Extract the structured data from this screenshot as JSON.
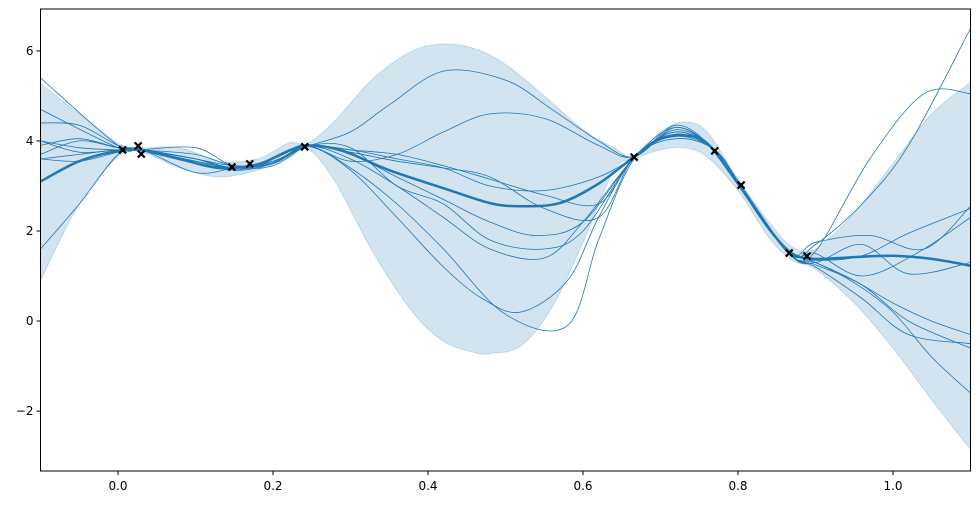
{
  "chart_data": {
    "type": "line",
    "title": "",
    "xlabel": "",
    "ylabel": "",
    "xlim": [
      -0.1,
      1.1
    ],
    "ylim": [
      -3.33,
      6.93
    ],
    "grid": false,
    "legend": null,
    "x_ticks": [
      "0.0",
      "0.2",
      "0.4",
      "0.6",
      "0.8",
      "1.0"
    ],
    "x_tick_values": [
      0.0,
      0.2,
      0.4,
      0.6,
      0.8,
      1.0
    ],
    "y_ticks": [
      "−2",
      "0",
      "2",
      "4",
      "6"
    ],
    "y_tick_values": [
      -2,
      0,
      2,
      4,
      6
    ],
    "colors": {
      "mean": "#1f77b4",
      "band": "#1f77b4",
      "band_opacity": 0.2,
      "points": "#000000"
    },
    "observations": {
      "marker": "x",
      "x": [
        0.006,
        0.026,
        0.03,
        0.147,
        0.17,
        0.241,
        0.666,
        0.77,
        0.804,
        0.866,
        0.889
      ],
      "y": [
        3.8,
        3.89,
        3.71,
        3.42,
        3.49,
        3.87,
        3.64,
        3.78,
        3.02,
        1.51,
        1.44
      ]
    },
    "mean": {
      "x": [
        -0.1,
        -0.05,
        0.0,
        0.03,
        0.08,
        0.13,
        0.18,
        0.22,
        0.245,
        0.29,
        0.35,
        0.42,
        0.48,
        0.52,
        0.57,
        0.62,
        0.666,
        0.7,
        0.73,
        0.76,
        0.8,
        0.84,
        0.87,
        0.9,
        0.95,
        1.0,
        1.05,
        1.1
      ],
      "y": [
        3.1,
        3.55,
        3.78,
        3.8,
        3.6,
        3.4,
        3.48,
        3.78,
        3.9,
        3.78,
        3.35,
        2.95,
        2.62,
        2.55,
        2.62,
        3.05,
        3.65,
        4.05,
        4.12,
        3.95,
        3.05,
        2.05,
        1.5,
        1.38,
        1.42,
        1.45,
        1.38,
        1.23
      ]
    },
    "band_upper": {
      "x": [
        -0.1,
        -0.05,
        0.0,
        0.03,
        0.08,
        0.13,
        0.18,
        0.22,
        0.245,
        0.28,
        0.33,
        0.38,
        0.42,
        0.46,
        0.5,
        0.55,
        0.6,
        0.64,
        0.666,
        0.7,
        0.73,
        0.76,
        0.8,
        0.84,
        0.87,
        0.9,
        0.95,
        1.0,
        1.05,
        1.1
      ],
      "y": [
        5.27,
        4.6,
        3.95,
        3.85,
        3.85,
        3.55,
        3.6,
        3.95,
        3.95,
        4.45,
        5.4,
        6.0,
        6.15,
        6.05,
        5.7,
        5.0,
        4.25,
        3.85,
        3.65,
        4.2,
        4.42,
        4.2,
        3.15,
        2.2,
        1.65,
        1.6,
        2.4,
        3.5,
        4.6,
        5.3
      ]
    },
    "band_lower": {
      "x": [
        -0.1,
        -0.05,
        0.0,
        0.03,
        0.08,
        0.13,
        0.18,
        0.22,
        0.245,
        0.28,
        0.33,
        0.38,
        0.42,
        0.46,
        0.48,
        0.52,
        0.56,
        0.6,
        0.64,
        0.666,
        0.7,
        0.73,
        0.76,
        0.8,
        0.84,
        0.87,
        0.9,
        0.95,
        1.0,
        1.05,
        1.1
      ],
      "y": [
        0.9,
        2.6,
        3.65,
        3.75,
        3.4,
        3.2,
        3.35,
        3.62,
        3.82,
        3.1,
        1.5,
        0.2,
        -0.45,
        -0.7,
        -0.72,
        -0.55,
        0.3,
        1.75,
        3.35,
        3.6,
        3.8,
        3.85,
        3.65,
        2.9,
        1.85,
        1.35,
        1.15,
        0.4,
        -0.6,
        -1.75,
        -2.85
      ]
    },
    "samples": [
      {
        "x": [
          -0.1,
          0.0,
          0.03,
          0.1,
          0.15,
          0.2,
          0.245,
          0.3,
          0.36,
          0.42,
          0.48,
          0.55,
          0.62,
          0.666,
          0.72,
          0.77,
          0.804,
          0.866,
          0.9,
          0.96,
          1.02,
          1.1
        ],
        "y": [
          5.4,
          3.9,
          3.8,
          3.55,
          3.35,
          3.6,
          3.88,
          3.55,
          3.7,
          4.2,
          4.6,
          4.5,
          3.9,
          3.65,
          4.35,
          3.8,
          3.0,
          1.5,
          1.7,
          2.6,
          3.9,
          6.5
        ]
      },
      {
        "x": [
          -0.1,
          0.0,
          0.03,
          0.1,
          0.15,
          0.2,
          0.245,
          0.3,
          0.35,
          0.42,
          0.5,
          0.56,
          0.62,
          0.666,
          0.72,
          0.77,
          0.804,
          0.866,
          0.9,
          0.97,
          1.04,
          1.1
        ],
        "y": [
          4.7,
          3.85,
          3.8,
          3.6,
          3.4,
          3.55,
          3.88,
          4.2,
          4.8,
          5.55,
          5.35,
          4.7,
          4.0,
          3.65,
          4.3,
          3.78,
          3.0,
          1.5,
          1.55,
          3.6,
          5.05,
          5.05
        ]
      },
      {
        "x": [
          -0.1,
          -0.05,
          0.0,
          0.03,
          0.1,
          0.15,
          0.2,
          0.245,
          0.3,
          0.36,
          0.42,
          0.5,
          0.58,
          0.62,
          0.666,
          0.72,
          0.77,
          0.804,
          0.866,
          0.9,
          0.96,
          1.02,
          1.1
        ],
        "y": [
          1.6,
          2.6,
          3.7,
          3.8,
          3.3,
          3.4,
          3.5,
          3.88,
          3.4,
          2.6,
          1.6,
          0.15,
          -0.1,
          1.8,
          3.6,
          4.15,
          3.8,
          3.0,
          1.5,
          1.25,
          0.8,
          0.0,
          -0.6
        ]
      },
      {
        "x": [
          -0.1,
          -0.05,
          0.0,
          0.03,
          0.1,
          0.15,
          0.2,
          0.245,
          0.3,
          0.36,
          0.42,
          0.47,
          0.52,
          0.58,
          0.62,
          0.666,
          0.72,
          0.77,
          0.804,
          0.866,
          0.9,
          0.95,
          1.0,
          1.05,
          1.1
        ],
        "y": [
          3.6,
          3.7,
          3.8,
          3.78,
          3.5,
          3.42,
          3.52,
          3.88,
          3.35,
          2.3,
          1.2,
          0.5,
          0.2,
          0.9,
          2.3,
          3.62,
          4.2,
          3.8,
          3.0,
          1.5,
          1.3,
          0.9,
          0.4,
          0.0,
          -0.3
        ]
      },
      {
        "x": [
          -0.1,
          -0.05,
          0.0,
          0.03,
          0.1,
          0.15,
          0.2,
          0.245,
          0.3,
          0.36,
          0.42,
          0.48,
          0.55,
          0.62,
          0.666,
          0.72,
          0.77,
          0.804,
          0.866,
          0.9,
          0.97,
          1.04,
          1.1
        ],
        "y": [
          4.4,
          4.35,
          3.9,
          3.82,
          3.6,
          3.4,
          3.5,
          3.88,
          3.8,
          3.6,
          3.4,
          3.0,
          2.9,
          3.2,
          3.64,
          4.25,
          3.8,
          3.0,
          1.5,
          1.75,
          1.9,
          1.6,
          2.55
        ]
      },
      {
        "x": [
          -0.1,
          -0.05,
          0.0,
          0.03,
          0.1,
          0.15,
          0.2,
          0.245,
          0.3,
          0.36,
          0.42,
          0.48,
          0.54,
          0.6,
          0.666,
          0.72,
          0.77,
          0.804,
          0.866,
          0.9,
          0.96,
          1.02,
          1.1
        ],
        "y": [
          3.9,
          4.05,
          3.85,
          3.8,
          3.7,
          3.45,
          3.5,
          3.88,
          3.7,
          3.2,
          2.7,
          2.2,
          1.9,
          2.2,
          3.64,
          4.3,
          3.8,
          3.0,
          1.5,
          1.35,
          1.45,
          1.95,
          2.5
        ]
      },
      {
        "x": [
          -0.1,
          -0.05,
          0.0,
          0.03,
          0.1,
          0.15,
          0.2,
          0.245,
          0.3,
          0.36,
          0.42,
          0.48,
          0.55,
          0.6,
          0.666,
          0.72,
          0.77,
          0.804,
          0.866,
          0.9,
          0.96,
          1.03,
          1.1
        ],
        "y": [
          4.0,
          3.75,
          3.8,
          3.8,
          3.55,
          3.4,
          3.45,
          3.88,
          3.85,
          3.0,
          2.6,
          1.8,
          1.6,
          2.0,
          3.62,
          4.05,
          3.8,
          3.0,
          1.5,
          1.5,
          1.0,
          1.5,
          2.3
        ]
      },
      {
        "x": [
          -0.1,
          -0.05,
          0.0,
          0.03,
          0.1,
          0.15,
          0.2,
          0.245,
          0.3,
          0.36,
          0.42,
          0.48,
          0.55,
          0.6,
          0.666,
          0.72,
          0.77,
          0.804,
          0.866,
          0.9,
          0.95,
          1.0,
          1.05,
          1.1
        ],
        "y": [
          3.7,
          4.0,
          3.85,
          3.8,
          3.6,
          3.45,
          3.5,
          3.88,
          3.6,
          3.0,
          2.3,
          1.6,
          1.4,
          2.2,
          3.62,
          4.2,
          3.8,
          3.0,
          1.5,
          1.3,
          0.85,
          0.2,
          -0.8,
          -1.6
        ]
      },
      {
        "x": [
          -0.1,
          -0.05,
          0.0,
          0.03,
          0.1,
          0.15,
          0.2,
          0.245,
          0.3,
          0.36,
          0.42,
          0.48,
          0.55,
          0.62,
          0.666,
          0.72,
          0.77,
          0.804,
          0.866,
          0.9,
          0.96,
          1.02,
          1.1
        ],
        "y": [
          3.6,
          3.55,
          3.75,
          3.8,
          3.85,
          3.45,
          3.55,
          3.88,
          3.75,
          3.55,
          3.4,
          3.2,
          2.5,
          2.3,
          3.64,
          4.1,
          3.8,
          3.0,
          1.5,
          1.3,
          1.7,
          1.05,
          1.3
        ]
      },
      {
        "x": [
          -0.1,
          -0.05,
          0.0,
          0.03,
          0.1,
          0.15,
          0.2,
          0.245,
          0.3,
          0.36,
          0.42,
          0.48,
          0.55,
          0.62,
          0.666,
          0.72,
          0.77,
          0.804,
          0.866,
          0.9,
          0.96,
          1.02,
          1.1
        ],
        "y": [
          4.0,
          3.85,
          3.8,
          3.8,
          3.6,
          3.35,
          3.5,
          3.88,
          3.8,
          3.7,
          3.45,
          3.15,
          2.8,
          2.6,
          3.64,
          4.15,
          3.8,
          3.0,
          1.5,
          1.2,
          0.5,
          -0.3,
          -0.5
        ]
      }
    ]
  }
}
